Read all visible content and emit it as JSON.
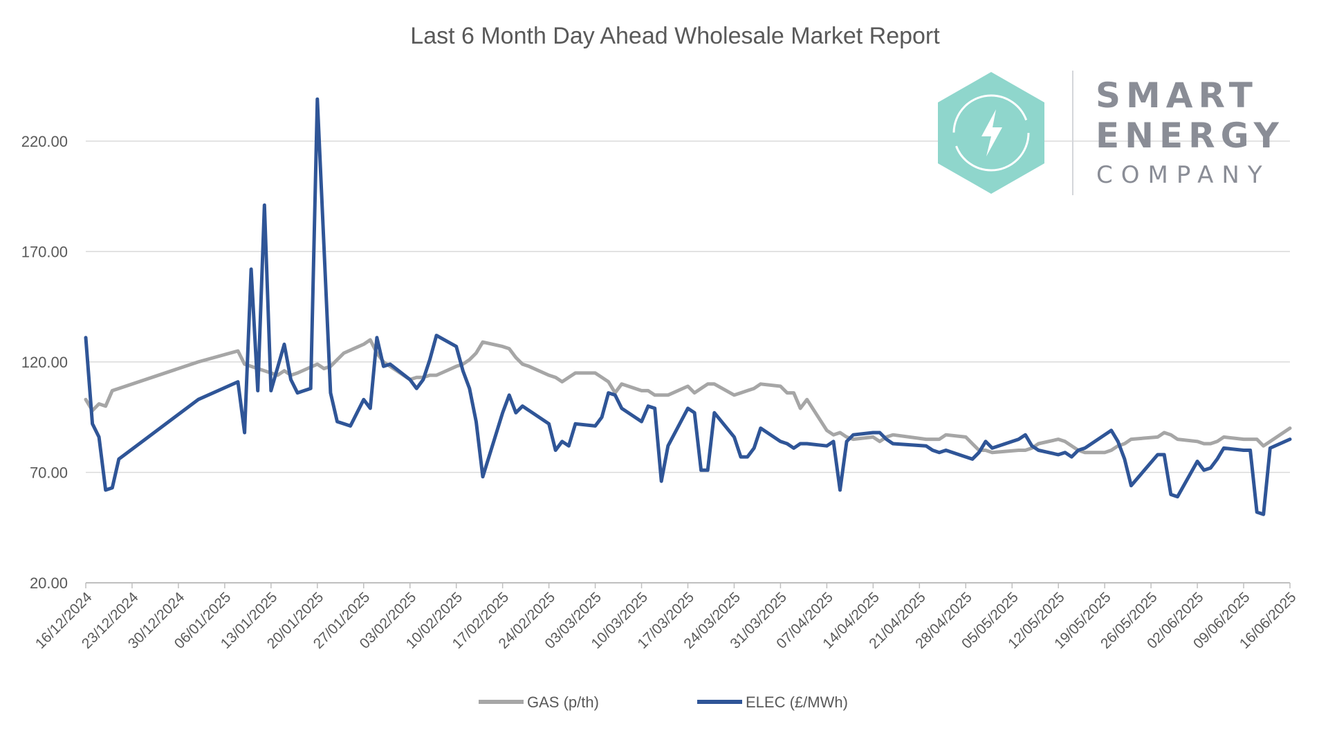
{
  "chart_data": {
    "type": "line",
    "title": "Last 6 Month Day Ahead Wholesale Market Report",
    "xlabel": "",
    "ylabel": "",
    "ylim": [
      20,
      240
    ],
    "yticks": [
      "20.00",
      "70.00",
      "120.00",
      "170.00",
      "220.00"
    ],
    "ytick_values": [
      20,
      70,
      120,
      170,
      220
    ],
    "x_start": "2024-12-16",
    "x_end": "2025-06-16",
    "x_ticks": [
      "16/12/2024",
      "23/12/2024",
      "30/12/2024",
      "06/01/2025",
      "13/01/2025",
      "20/01/2025",
      "27/01/2025",
      "03/02/2025",
      "10/02/2025",
      "17/02/2025",
      "24/02/2025",
      "03/03/2025",
      "10/03/2025",
      "17/03/2025",
      "24/03/2025",
      "31/03/2025",
      "07/04/2025",
      "14/04/2025",
      "21/04/2025",
      "28/04/2025",
      "05/05/2025",
      "12/05/2025",
      "19/05/2025",
      "26/05/2025",
      "02/06/2025",
      "09/06/2025",
      "16/06/2025"
    ],
    "grid": "horizontal",
    "legend_position": "bottom",
    "series": [
      {
        "name": "GAS (p/th)",
        "color": "#a6a6a6",
        "x": [
          "2024-12-16",
          "2024-12-17",
          "2024-12-18",
          "2024-12-19",
          "2024-12-20",
          "2024-12-21",
          "2025-01-02",
          "2025-01-08",
          "2025-01-09",
          "2025-01-10",
          "2025-01-13",
          "2025-01-14",
          "2025-01-15",
          "2025-01-16",
          "2025-01-17",
          "2025-01-20",
          "2025-01-21",
          "2025-01-22",
          "2025-01-23",
          "2025-01-24",
          "2025-01-27",
          "2025-01-28",
          "2025-01-29",
          "2025-01-30",
          "2025-01-31",
          "2025-02-03",
          "2025-02-04",
          "2025-02-05",
          "2025-02-06",
          "2025-02-07",
          "2025-02-10",
          "2025-02-11",
          "2025-02-12",
          "2025-02-13",
          "2025-02-14",
          "2025-02-17",
          "2025-02-18",
          "2025-02-19",
          "2025-02-20",
          "2025-02-21",
          "2025-02-24",
          "2025-02-25",
          "2025-02-26",
          "2025-02-27",
          "2025-02-28",
          "2025-03-03",
          "2025-03-04",
          "2025-03-05",
          "2025-03-06",
          "2025-03-07",
          "2025-03-10",
          "2025-03-11",
          "2025-03-12",
          "2025-03-13",
          "2025-03-14",
          "2025-03-17",
          "2025-03-18",
          "2025-03-19",
          "2025-03-20",
          "2025-03-21",
          "2025-03-24",
          "2025-03-25",
          "2025-03-26",
          "2025-03-27",
          "2025-03-28",
          "2025-03-31",
          "2025-04-01",
          "2025-04-02",
          "2025-04-03",
          "2025-04-04",
          "2025-04-07",
          "2025-04-08",
          "2025-04-09",
          "2025-04-10",
          "2025-04-11",
          "2025-04-14",
          "2025-04-15",
          "2025-04-16",
          "2025-04-17",
          "2025-04-22",
          "2025-04-23",
          "2025-04-24",
          "2025-04-25",
          "2025-04-28",
          "2025-04-29",
          "2025-04-30",
          "2025-05-01",
          "2025-05-02",
          "2025-05-06",
          "2025-05-07",
          "2025-05-08",
          "2025-05-09",
          "2025-05-12",
          "2025-05-13",
          "2025-05-14",
          "2025-05-15",
          "2025-05-16",
          "2025-05-19",
          "2025-05-20",
          "2025-05-21",
          "2025-05-22",
          "2025-05-23",
          "2025-05-27",
          "2025-05-28",
          "2025-05-29",
          "2025-05-30",
          "2025-06-02",
          "2025-06-03",
          "2025-06-04",
          "2025-06-05",
          "2025-06-06",
          "2025-06-09",
          "2025-06-10",
          "2025-06-11",
          "2025-06-12",
          "2025-06-13",
          "2025-06-16"
        ],
        "values": [
          103,
          98,
          101,
          100,
          107,
          108,
          120,
          125,
          119,
          118,
          115,
          114,
          116,
          114,
          115,
          119,
          117,
          118,
          121,
          124,
          128,
          130,
          124,
          120,
          118,
          112,
          113,
          113,
          114,
          114,
          118,
          119,
          121,
          124,
          129,
          127,
          126,
          122,
          119,
          118,
          114,
          113,
          111,
          113,
          115,
          115,
          113,
          111,
          106,
          110,
          107,
          107,
          105,
          105,
          105,
          109,
          106,
          108,
          110,
          110,
          105,
          106,
          107,
          108,
          110,
          109,
          106,
          106,
          99,
          103,
          89,
          87,
          88,
          86,
          85,
          86,
          84,
          86,
          87,
          85,
          85,
          85,
          87,
          86,
          83,
          80,
          80,
          79,
          80,
          80,
          81,
          83,
          85,
          84,
          82,
          80,
          79,
          79,
          80,
          82,
          83,
          85,
          86,
          88,
          87,
          85,
          84,
          83,
          83,
          84,
          86,
          85,
          85,
          85,
          82,
          84,
          90
        ],
        "values_raw_note": ""
      }
    ]
  },
  "legend": {
    "gas_label": "GAS (p/th)",
    "elec_label": "ELEC (£/MWh)"
  },
  "logo": {
    "line1": "SMART",
    "line2": "ENERGY",
    "line3": "COMPANY",
    "hex_color": "#8fd6cc",
    "text_color": "#8a8d96"
  }
}
